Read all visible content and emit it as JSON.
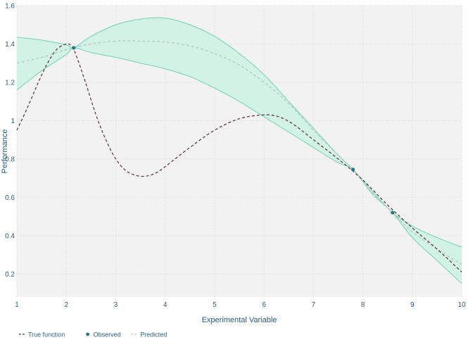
{
  "chart_data": {
    "type": "line",
    "xlabel": "Experimental Variable",
    "ylabel": "Performance",
    "xlim": [
      1,
      10
    ],
    "ylim": [
      0.08,
      1.6
    ],
    "xticks": [
      1,
      2,
      3,
      4,
      5,
      6,
      7,
      8,
      9,
      10
    ],
    "yticks": [
      0.2,
      0.4,
      0.6,
      0.8,
      1,
      1.2,
      1.4,
      1.6
    ],
    "grid": true,
    "legend": {
      "placement": "bottom-left",
      "entries": [
        "True function",
        "Observed",
        "Predicted"
      ]
    },
    "colors": {
      "true_function": "#5c2a3c",
      "observed": "#1a7f84",
      "predicted": "#b9c1c4",
      "band_fill": "#c8f2e2",
      "band_edge": "#6fd3b3",
      "plot_bg": "#f3f2f2",
      "axis_text": "#2a5d7a"
    },
    "series": [
      {
        "name": "True function",
        "style": "dashed",
        "x": [
          1,
          1.2,
          1.4,
          1.6,
          1.8,
          2.0,
          2.1,
          2.2,
          2.4,
          2.6,
          2.8,
          3.0,
          3.2,
          3.4,
          3.6,
          3.8,
          4.0,
          4.5,
          5.0,
          5.5,
          6.0,
          6.3,
          6.6,
          7.0,
          7.5,
          8.0,
          8.5,
          9.0,
          9.5,
          10.0
        ],
        "y": [
          0.95,
          1.06,
          1.18,
          1.29,
          1.37,
          1.4,
          1.39,
          1.34,
          1.19,
          1.03,
          0.9,
          0.8,
          0.74,
          0.715,
          0.71,
          0.725,
          0.76,
          0.86,
          0.95,
          1.01,
          1.03,
          1.02,
          0.98,
          0.9,
          0.8,
          0.69,
          0.56,
          0.44,
          0.33,
          0.21
        ]
      },
      {
        "name": "Observed",
        "style": "markers",
        "x": [
          2.15,
          7.8,
          8.6
        ],
        "y": [
          1.38,
          0.745,
          0.52
        ]
      },
      {
        "name": "Predicted",
        "style": "dashed",
        "x": [
          1,
          1.5,
          2.0,
          2.5,
          3.0,
          3.5,
          4.0,
          4.5,
          5.0,
          5.5,
          6.0,
          6.5,
          7.0,
          7.5,
          7.8,
          8.2,
          8.6,
          9.0,
          9.5,
          10.0
        ],
        "y": [
          1.3,
          1.33,
          1.37,
          1.4,
          1.415,
          1.415,
          1.41,
          1.39,
          1.35,
          1.29,
          1.2,
          1.09,
          0.95,
          0.82,
          0.745,
          0.62,
          0.52,
          0.42,
          0.33,
          0.25
        ]
      }
    ],
    "confidence_band": {
      "x": [
        1,
        1.5,
        2.0,
        2.15,
        2.5,
        3.0,
        3.5,
        4.0,
        4.5,
        5.0,
        5.5,
        6.0,
        6.5,
        7.0,
        7.5,
        7.8,
        8.2,
        8.6,
        9.0,
        9.5,
        10.0
      ],
      "upper": [
        1.435,
        1.42,
        1.395,
        1.38,
        1.44,
        1.5,
        1.53,
        1.535,
        1.5,
        1.44,
        1.35,
        1.24,
        1.1,
        0.96,
        0.82,
        0.745,
        0.63,
        0.52,
        0.45,
        0.39,
        0.34
      ],
      "lower": [
        1.16,
        1.26,
        1.345,
        1.38,
        1.355,
        1.33,
        1.3,
        1.27,
        1.23,
        1.17,
        1.1,
        1.02,
        0.94,
        0.86,
        0.78,
        0.745,
        0.615,
        0.52,
        0.39,
        0.27,
        0.15
      ]
    }
  }
}
